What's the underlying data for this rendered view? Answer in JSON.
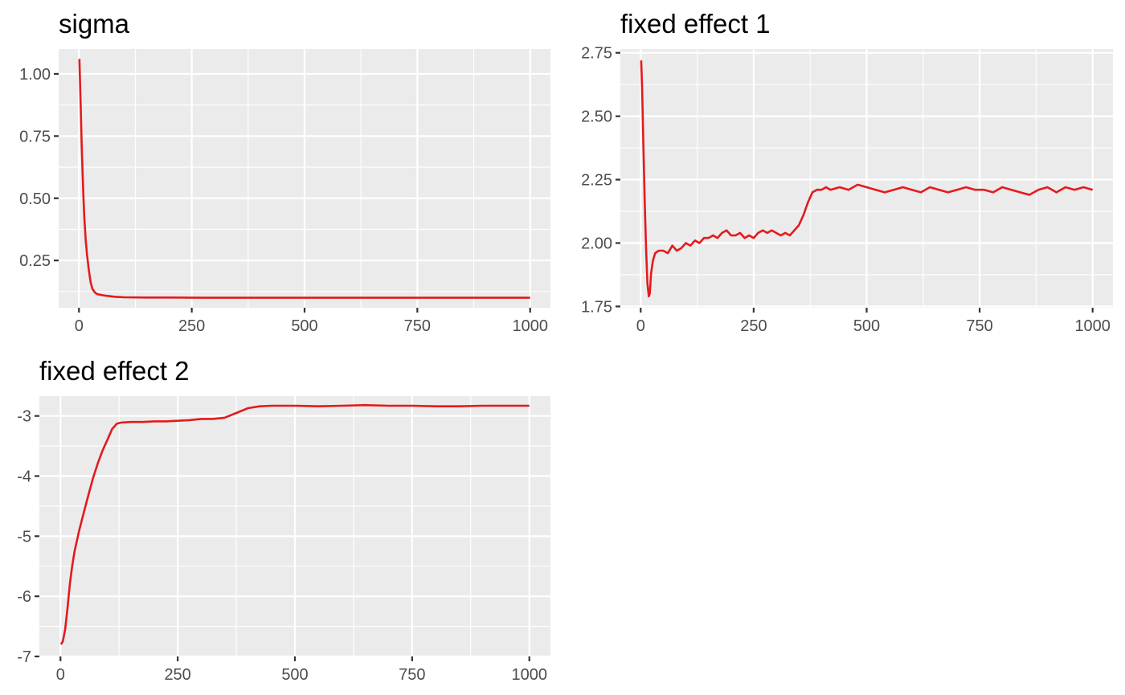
{
  "figure": {
    "background": "#ffffff",
    "panel_background": "#ebebeb",
    "line_color": "#e41a1c"
  },
  "chart_data": [
    {
      "type": "line",
      "title": "sigma",
      "xlabel": "",
      "ylabel": "",
      "xlim": [
        -45,
        1045
      ],
      "ylim": [
        0.06,
        1.1
      ],
      "x_ticks": [
        0,
        250,
        500,
        750,
        1000
      ],
      "x_tick_labels": [
        "0",
        "250",
        "500",
        "750",
        "1000"
      ],
      "y_ticks": [
        0.25,
        0.5,
        0.75,
        1.0
      ],
      "y_tick_labels": [
        "0.25",
        "0.50",
        "0.75",
        "1.00"
      ],
      "series": [
        {
          "name": "sigma",
          "x": [
            1,
            2,
            4,
            6,
            8,
            10,
            12,
            15,
            18,
            22,
            26,
            30,
            35,
            40,
            50,
            60,
            80,
            100,
            150,
            200,
            300,
            400,
            500,
            600,
            700,
            800,
            900,
            1000
          ],
          "y": [
            1.06,
            0.99,
            0.86,
            0.72,
            0.6,
            0.5,
            0.42,
            0.33,
            0.27,
            0.21,
            0.16,
            0.135,
            0.122,
            0.115,
            0.111,
            0.108,
            0.104,
            0.102,
            0.101,
            0.101,
            0.1,
            0.1,
            0.1,
            0.1,
            0.1,
            0.1,
            0.1,
            0.1
          ]
        }
      ]
    },
    {
      "type": "line",
      "title": "fixed effect 1",
      "xlabel": "",
      "ylabel": "",
      "xlim": [
        -45,
        1045
      ],
      "ylim": [
        1.745,
        2.765
      ],
      "x_ticks": [
        0,
        250,
        500,
        750,
        1000
      ],
      "x_tick_labels": [
        "0",
        "250",
        "500",
        "750",
        "1000"
      ],
      "y_ticks": [
        1.75,
        2.0,
        2.25,
        2.5,
        2.75
      ],
      "y_tick_labels": [
        "1.75",
        "2.00",
        "2.25",
        "2.50",
        "2.75"
      ],
      "series": [
        {
          "name": "fixed effect 1",
          "x": [
            1,
            3,
            6,
            9,
            12,
            15,
            18,
            20,
            23,
            27,
            32,
            40,
            50,
            60,
            70,
            80,
            90,
            100,
            110,
            120,
            130,
            140,
            150,
            160,
            170,
            180,
            190,
            200,
            210,
            220,
            230,
            240,
            250,
            260,
            270,
            280,
            290,
            300,
            310,
            320,
            330,
            340,
            350,
            360,
            370,
            380,
            390,
            400,
            410,
            420,
            440,
            460,
            480,
            500,
            520,
            540,
            560,
            580,
            600,
            620,
            640,
            660,
            680,
            700,
            720,
            740,
            760,
            780,
            800,
            820,
            840,
            860,
            880,
            900,
            920,
            940,
            960,
            980,
            1000
          ],
          "y": [
            2.72,
            2.62,
            2.38,
            2.15,
            1.97,
            1.84,
            1.79,
            1.8,
            1.88,
            1.93,
            1.96,
            1.97,
            1.97,
            1.96,
            1.99,
            1.97,
            1.98,
            2.0,
            1.99,
            2.01,
            2.0,
            2.02,
            2.02,
            2.03,
            2.02,
            2.04,
            2.05,
            2.03,
            2.03,
            2.04,
            2.02,
            2.03,
            2.02,
            2.04,
            2.05,
            2.04,
            2.05,
            2.04,
            2.03,
            2.04,
            2.03,
            2.05,
            2.07,
            2.11,
            2.16,
            2.2,
            2.21,
            2.21,
            2.22,
            2.21,
            2.22,
            2.21,
            2.23,
            2.22,
            2.21,
            2.2,
            2.21,
            2.22,
            2.21,
            2.2,
            2.22,
            2.21,
            2.2,
            2.21,
            2.22,
            2.21,
            2.21,
            2.2,
            2.22,
            2.21,
            2.2,
            2.19,
            2.21,
            2.22,
            2.2,
            2.22,
            2.21,
            2.22,
            2.21
          ]
        }
      ]
    },
    {
      "type": "line",
      "title": "fixed effect 2",
      "xlabel": "",
      "ylabel": "",
      "xlim": [
        -45,
        1045
      ],
      "ylim": [
        -7.0,
        -2.67
      ],
      "x_ticks": [
        0,
        250,
        500,
        750,
        1000
      ],
      "x_tick_labels": [
        "0",
        "250",
        "500",
        "750",
        "1000"
      ],
      "y_ticks": [
        -7,
        -6,
        -5,
        -4,
        -3
      ],
      "y_tick_labels": [
        "-7",
        "-6",
        "-5",
        "-4",
        "-3"
      ],
      "series": [
        {
          "name": "fixed effect 2",
          "x": [
            1,
            5,
            10,
            15,
            20,
            25,
            30,
            40,
            50,
            60,
            70,
            80,
            90,
            100,
            110,
            120,
            130,
            150,
            175,
            200,
            225,
            250,
            275,
            300,
            325,
            350,
            375,
            400,
            425,
            450,
            500,
            550,
            600,
            650,
            700,
            750,
            800,
            850,
            900,
            950,
            1000
          ],
          "y": [
            -6.8,
            -6.75,
            -6.55,
            -6.2,
            -5.8,
            -5.5,
            -5.25,
            -4.9,
            -4.6,
            -4.3,
            -4.02,
            -3.78,
            -3.57,
            -3.4,
            -3.22,
            -3.13,
            -3.11,
            -3.1,
            -3.1,
            -3.09,
            -3.09,
            -3.08,
            -3.07,
            -3.05,
            -3.05,
            -3.03,
            -2.95,
            -2.87,
            -2.84,
            -2.83,
            -2.83,
            -2.84,
            -2.83,
            -2.82,
            -2.83,
            -2.83,
            -2.84,
            -2.84,
            -2.83,
            -2.83,
            -2.83
          ]
        }
      ]
    }
  ]
}
